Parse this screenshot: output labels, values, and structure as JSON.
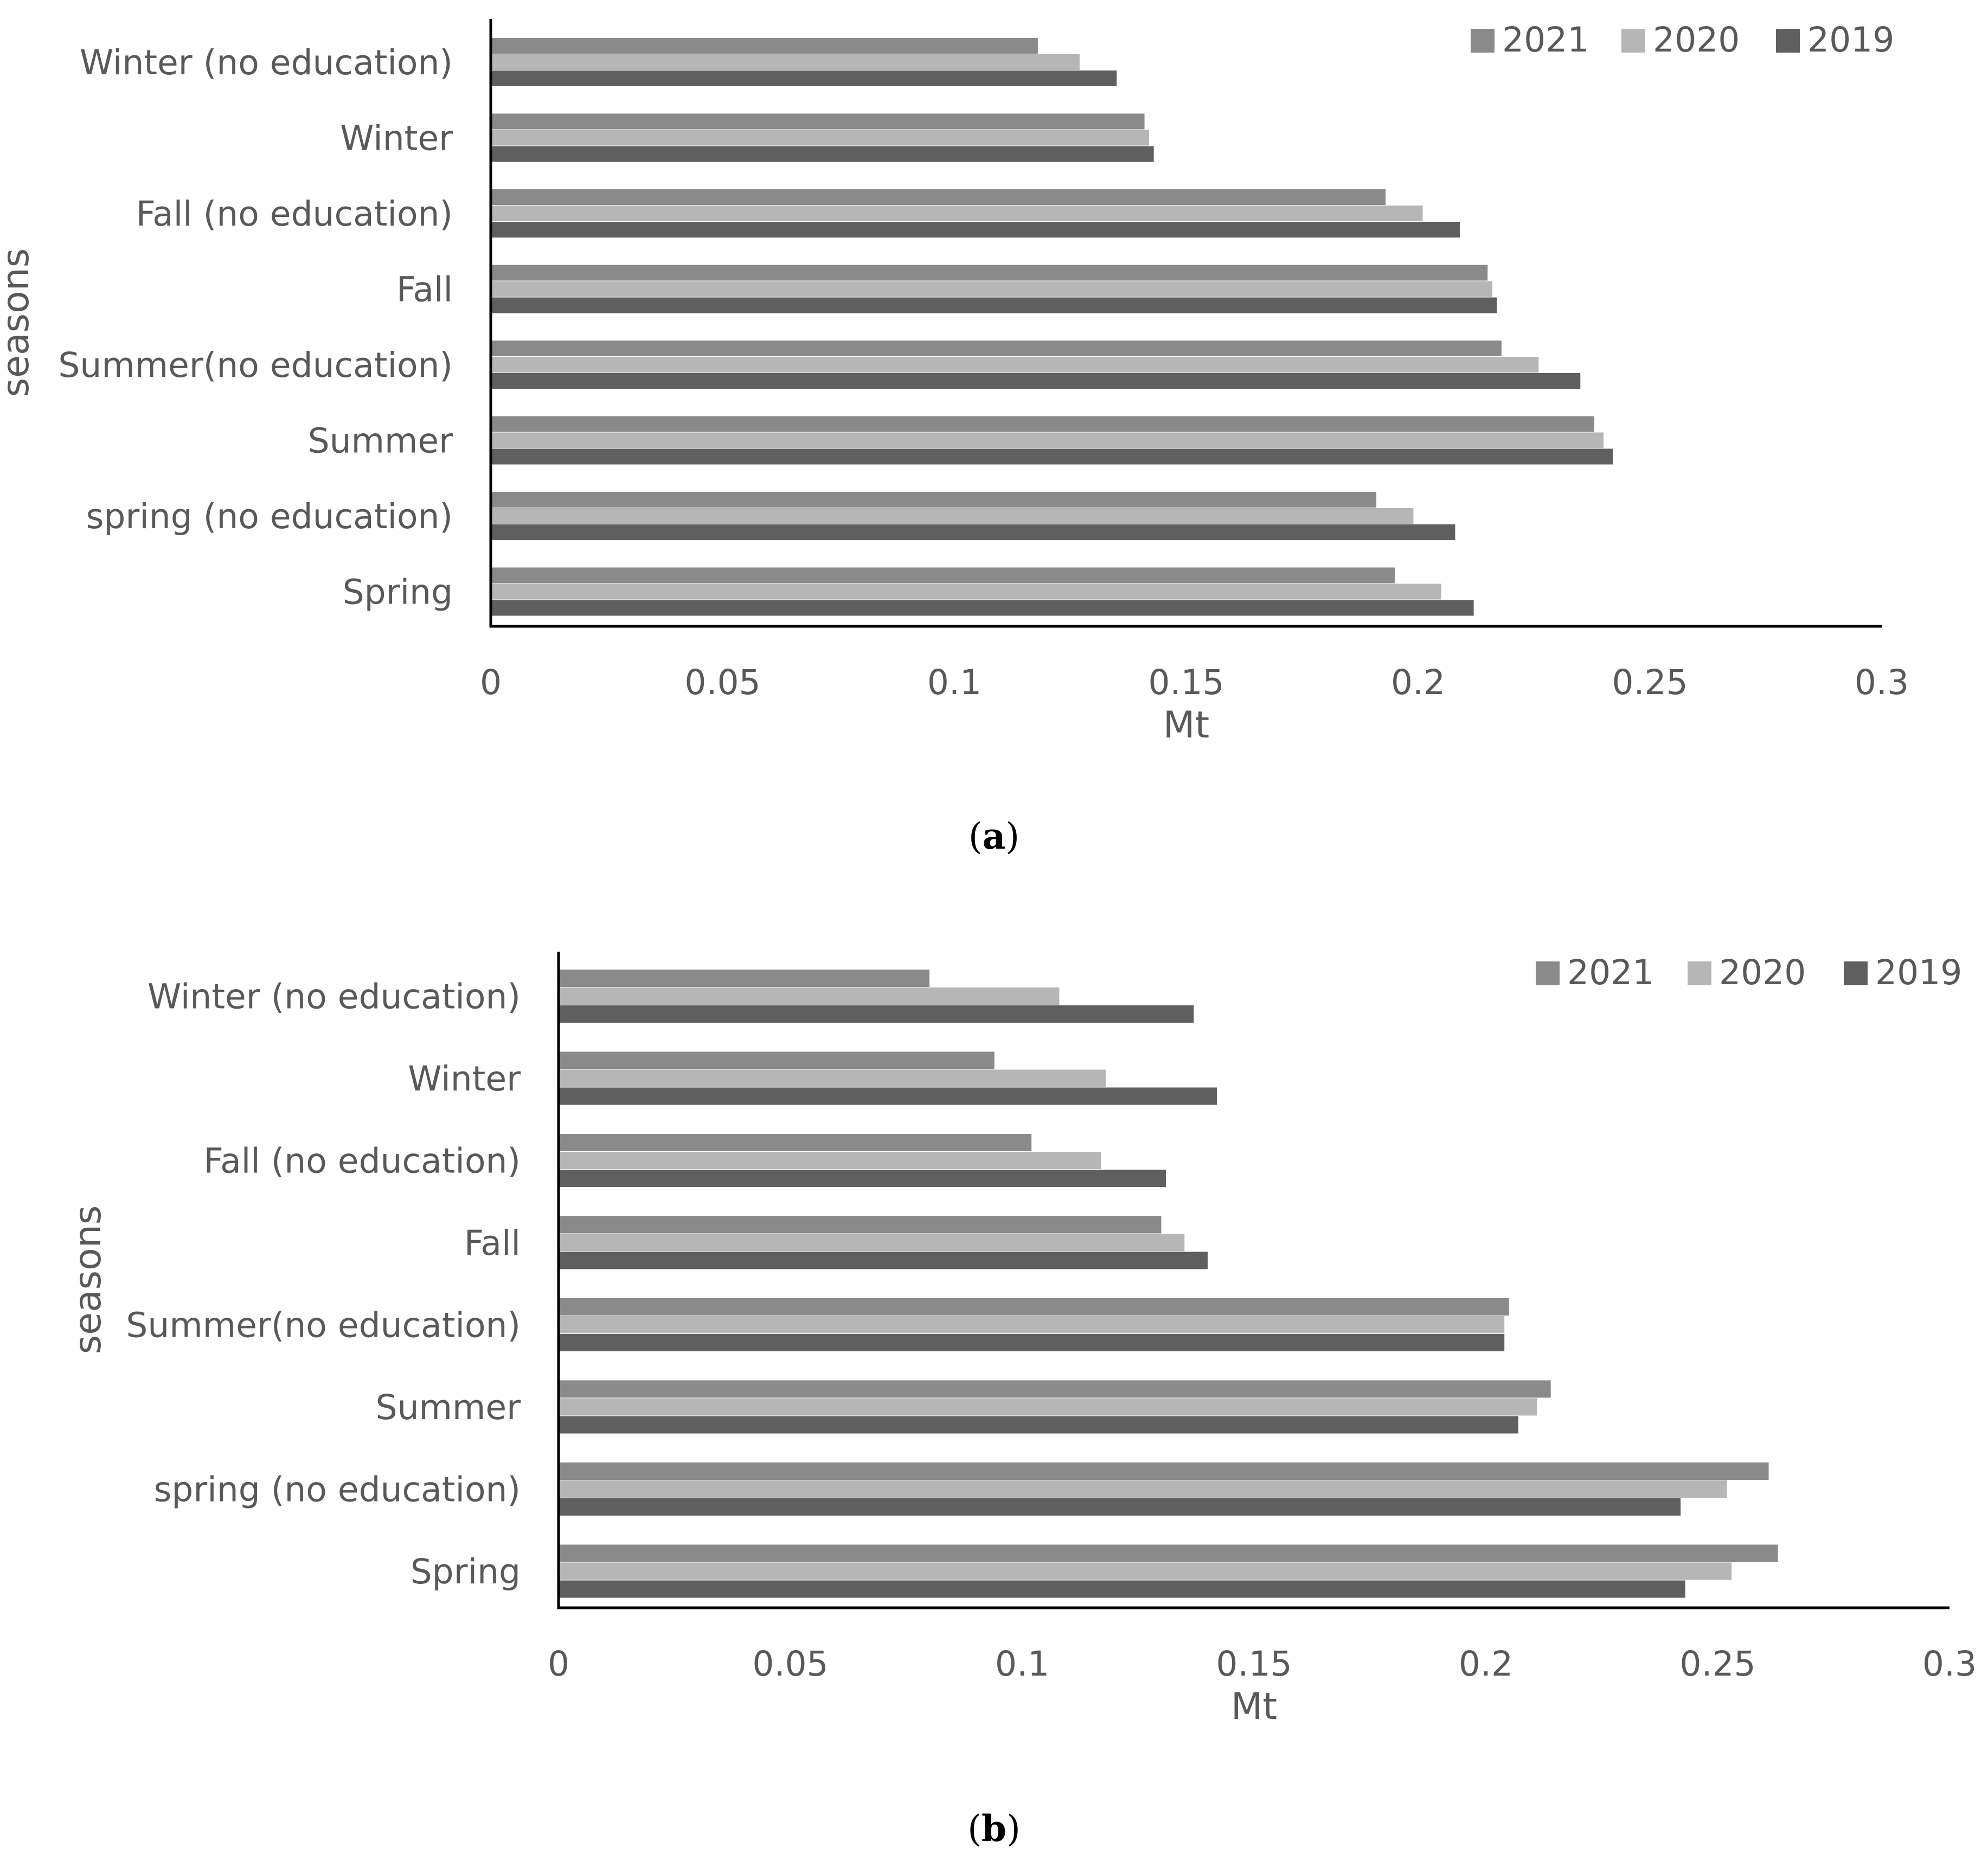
{
  "colors": {
    "2021": "#8a8a8a",
    "2020": "#b6b6b6",
    "2019": "#5f5f5f",
    "text": "#595959",
    "axis": "#000000"
  },
  "chart_data": [
    {
      "type": "bar",
      "orientation": "horizontal",
      "panel": "a",
      "caption_letter": "a",
      "categories": [
        "Winter (no education)",
        "Winter",
        "Fall (no education)",
        "Fall",
        "Summer(no education)",
        "Summer",
        "spring (no education)",
        "Spring"
      ],
      "series": [
        {
          "name": "2021",
          "values": [
            0.118,
            0.141,
            0.193,
            0.215,
            0.218,
            0.238,
            0.191,
            0.195
          ]
        },
        {
          "name": "2020",
          "values": [
            0.127,
            0.142,
            0.201,
            0.216,
            0.226,
            0.24,
            0.199,
            0.205
          ]
        },
        {
          "name": "2019",
          "values": [
            0.135,
            0.143,
            0.209,
            0.217,
            0.235,
            0.242,
            0.208,
            0.212
          ]
        }
      ],
      "xlabel": "Mt",
      "ylabel": "seasons",
      "xlim": [
        0,
        0.3
      ],
      "xticks": [
        "0",
        "0.05",
        "0.1",
        "0.15",
        "0.2",
        "0.25",
        "0.3"
      ],
      "legend_position": "top-right"
    },
    {
      "type": "bar",
      "orientation": "horizontal",
      "panel": "b",
      "caption_letter": "b",
      "categories": [
        "Winter (no education)",
        "Winter",
        "Fall (no education)",
        "Fall",
        "Summer(no education)",
        "Summer",
        "spring (no education)",
        "Spring"
      ],
      "series": [
        {
          "name": "2021",
          "values": [
            0.08,
            0.094,
            0.102,
            0.13,
            0.205,
            0.214,
            0.261,
            0.263
          ]
        },
        {
          "name": "2020",
          "values": [
            0.108,
            0.118,
            0.117,
            0.135,
            0.204,
            0.211,
            0.252,
            0.253
          ]
        },
        {
          "name": "2019",
          "values": [
            0.137,
            0.142,
            0.131,
            0.14,
            0.204,
            0.207,
            0.242,
            0.243
          ]
        }
      ],
      "xlabel": "Mt",
      "ylabel": "seasons",
      "xlim": [
        0,
        0.3
      ],
      "xticks": [
        "0",
        "0.05",
        "0.1",
        "0.15",
        "0.2",
        "0.25",
        "0.3"
      ],
      "legend_position": "top-right"
    }
  ]
}
